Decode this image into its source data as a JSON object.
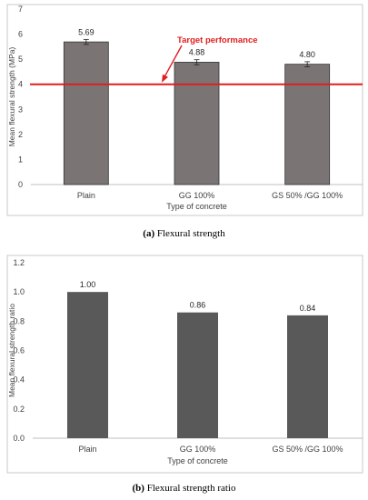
{
  "figures": {
    "a": {
      "caption_label": "(a)",
      "caption_text": "Flexural strength"
    },
    "b": {
      "caption_label": "(b)",
      "caption_text": "Flexural strength ratio"
    }
  },
  "chart_data": [
    {
      "type": "bar",
      "categories": [
        "Plain",
        "GG 100%",
        "GS 50% /GG 100%"
      ],
      "values": [
        5.69,
        4.88,
        4.8
      ],
      "data_labels": [
        "5.69",
        "4.88",
        "4.80"
      ],
      "error_bars": [
        0.1,
        0.1,
        0.1
      ],
      "xlabel": "Type of concrete",
      "ylabel": "Mean flexural strength (MPa)",
      "ylim": [
        0,
        7
      ],
      "yticks": [
        "0",
        "1",
        "2",
        "3",
        "4",
        "5",
        "6",
        "7"
      ],
      "grid": false,
      "bar_color": "#7a7574",
      "reference_line": {
        "value": 4,
        "label": "Target performance",
        "color": "#e01e1e"
      }
    },
    {
      "type": "bar",
      "categories": [
        "Plain",
        "GG 100%",
        "GS 50% /GG 100%"
      ],
      "values": [
        1.0,
        0.86,
        0.84
      ],
      "data_labels": [
        "1.00",
        "0.86",
        "0.84"
      ],
      "xlabel": "Type of concrete",
      "ylabel": "Mean flexural strength ratio",
      "ylim": [
        0,
        1.2
      ],
      "yticks": [
        "0.0",
        "0.2",
        "0.4",
        "0.6",
        "0.8",
        "1.0",
        "1.2"
      ],
      "grid": false,
      "bar_color": "#595959"
    }
  ]
}
